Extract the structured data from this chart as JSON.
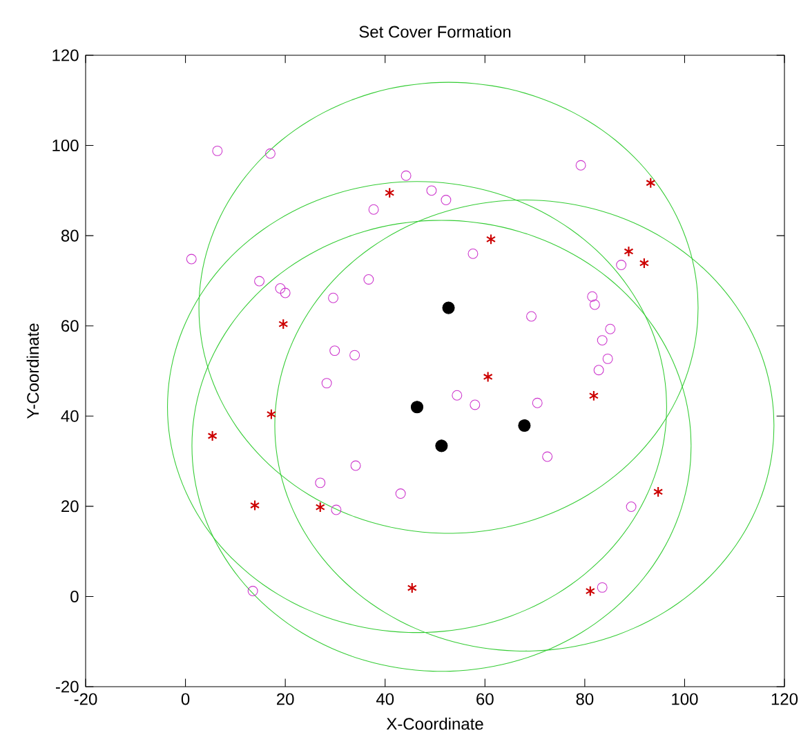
{
  "chart_data": {
    "type": "scatter",
    "title": "Set Cover Formation",
    "xlabel": "X-Coordinate",
    "ylabel": "Y-Coordinate",
    "xlim": [
      -20,
      120
    ],
    "ylim": [
      -20,
      120
    ],
    "xticks": [
      -20,
      0,
      20,
      40,
      60,
      80,
      100,
      120
    ],
    "yticks": [
      -20,
      0,
      20,
      40,
      60,
      80,
      100,
      120
    ],
    "grid": false,
    "series": [
      {
        "type": "scatter",
        "marker": "circle",
        "color": "#cc33cc",
        "x": [
          6.4,
          17.0,
          44.2,
          49.3,
          52.2,
          37.7,
          1.2,
          14.8,
          19.0,
          20.0,
          36.7,
          29.6,
          29.9,
          33.9,
          28.3,
          79.2,
          57.6,
          87.3,
          81.5,
          82.0,
          69.3,
          85.1,
          83.5,
          84.6,
          82.8,
          54.4,
          58.0,
          70.5,
          72.5,
          89.3,
          83.5,
          34.1,
          27.0,
          43.1,
          30.2,
          13.5
        ],
        "values": [
          98.8,
          98.2,
          93.3,
          90.0,
          87.9,
          85.8,
          74.8,
          69.9,
          68.3,
          67.3,
          70.3,
          66.2,
          54.5,
          53.5,
          47.3,
          95.6,
          76.0,
          73.5,
          66.5,
          64.7,
          62.1,
          59.3,
          56.8,
          52.7,
          50.2,
          44.6,
          42.5,
          42.9,
          31.0,
          19.9,
          2.0,
          29.0,
          25.2,
          22.8,
          19.2,
          1.2
        ]
      },
      {
        "type": "scatter",
        "marker": "cross",
        "color": "#cc0000",
        "x": [
          40.9,
          19.6,
          93.2,
          61.2,
          88.8,
          91.9,
          60.6,
          81.8,
          94.7,
          81.1,
          17.2,
          5.4,
          13.9,
          27.0,
          45.4
        ],
        "values": [
          89.5,
          60.4,
          91.7,
          79.2,
          76.5,
          73.9,
          48.7,
          44.5,
          23.2,
          1.2,
          40.4,
          35.6,
          20.2,
          19.8,
          1.9
        ]
      },
      {
        "type": "scatter",
        "marker": "filled circle",
        "color": "#000000",
        "x": [
          52.7,
          46.4,
          51.3,
          67.9
        ],
        "values": [
          64.0,
          42.0,
          33.4,
          37.9
        ]
      }
    ]
  }
}
